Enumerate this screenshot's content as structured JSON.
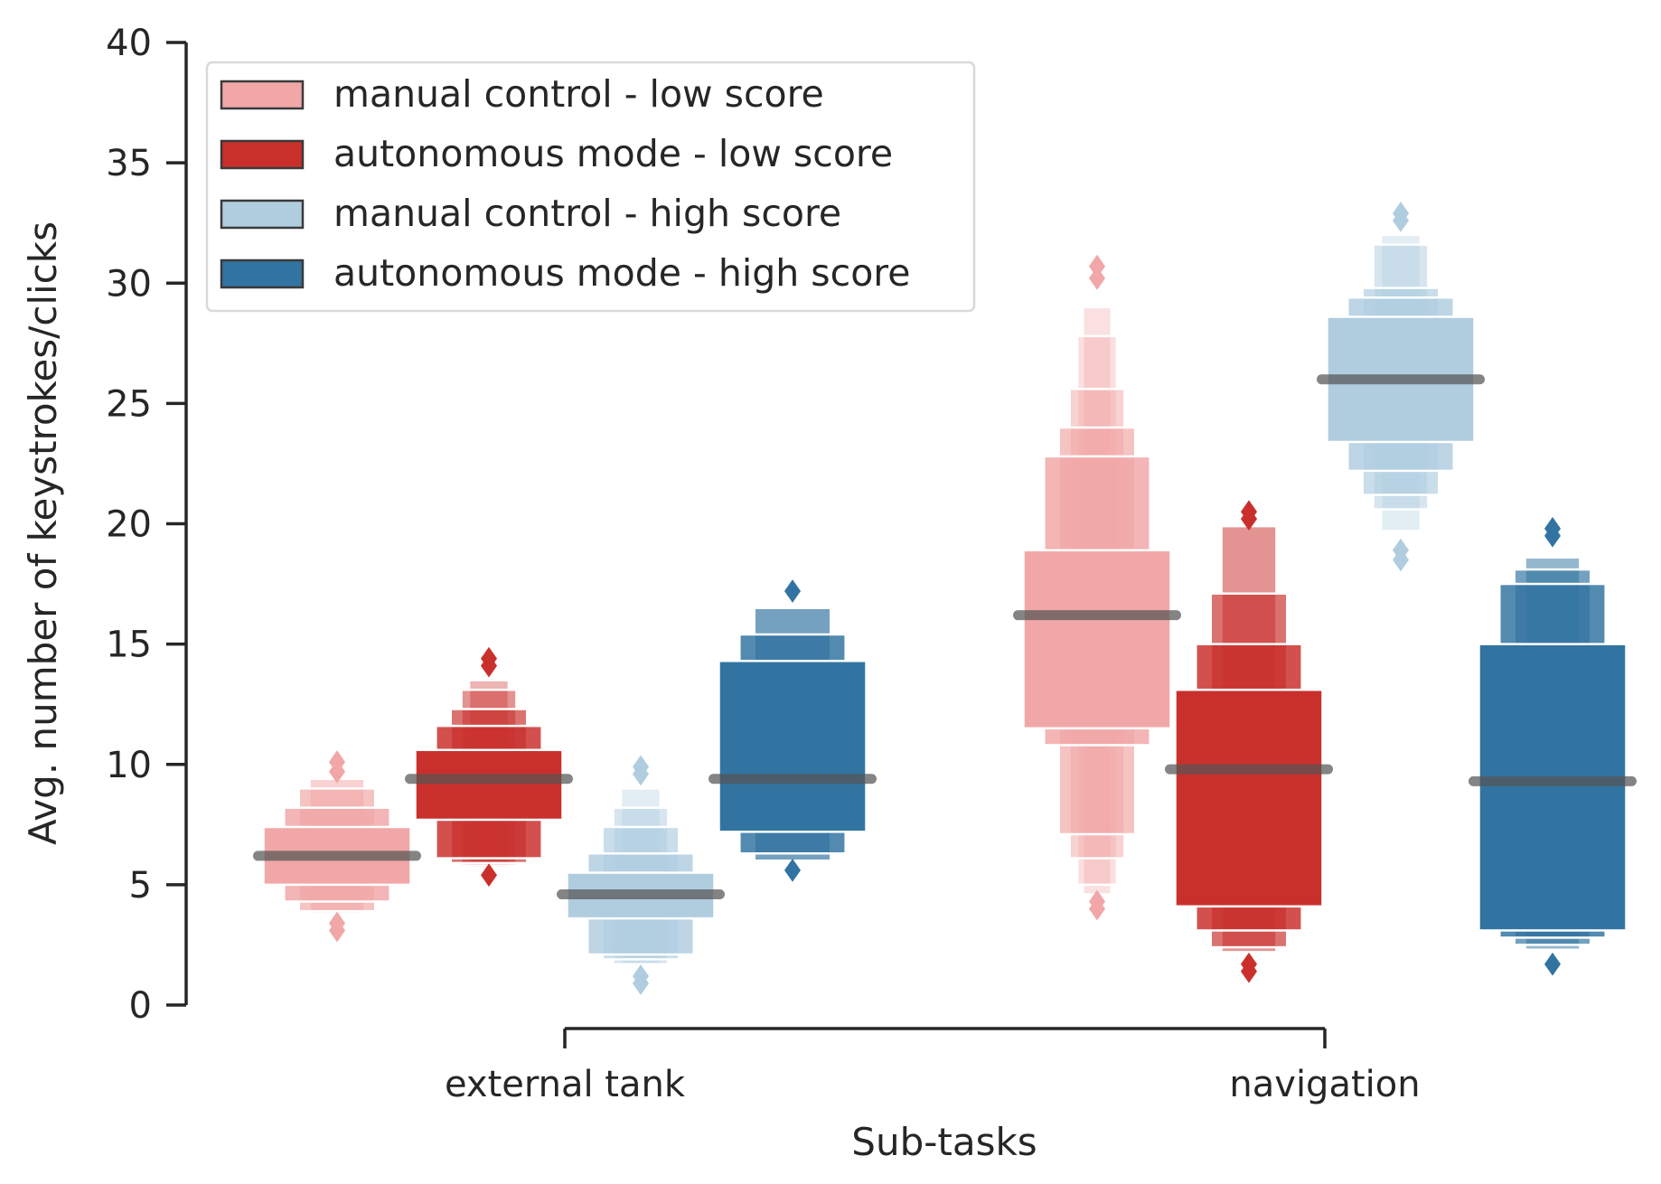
{
  "chart_data": {
    "type": "boxen",
    "xlabel": "Sub-tasks",
    "ylabel": "Avg. number of keystrokes/clicks",
    "ylim": [
      0,
      40
    ],
    "yticks": [
      0,
      5,
      10,
      15,
      20,
      25,
      30,
      35,
      40
    ],
    "categories": [
      "external tank",
      "navigation"
    ],
    "legend_position": "top-left",
    "series": [
      {
        "name": "manual control - low score",
        "color": "#f1a7a7",
        "groups": [
          {
            "category": "external tank",
            "median": 6.2,
            "boxes": [
              [
                5.0,
                7.4
              ],
              [
                4.3,
                8.2
              ],
              [
                3.9,
                9.0
              ],
              [
                3.8,
                9.4
              ]
            ],
            "outliers": [
              3.4,
              3.1,
              9.7,
              10.1
            ]
          },
          {
            "category": "navigation",
            "median": 16.2,
            "boxes": [
              [
                11.5,
                18.9
              ],
              [
                10.8,
                22.8
              ],
              [
                7.1,
                24.0
              ],
              [
                6.1,
                25.6
              ],
              [
                5.0,
                27.8
              ],
              [
                4.6,
                29.0
              ]
            ],
            "outliers": [
              4.0,
              4.3,
              30.2,
              30.7
            ]
          }
        ]
      },
      {
        "name": "autonomous mode - low score",
        "color": "#c9302c",
        "groups": [
          {
            "category": "external tank",
            "median": 9.4,
            "boxes": [
              [
                7.7,
                10.6
              ],
              [
                6.1,
                11.6
              ],
              [
                5.9,
                12.3
              ],
              [
                5.8,
                13.1
              ],
              [
                5.7,
                13.5
              ]
            ],
            "outliers": [
              5.4,
              14.1,
              14.4
            ]
          },
          {
            "category": "navigation",
            "median": 9.8,
            "boxes": [
              [
                4.1,
                13.1
              ],
              [
                3.1,
                15.0
              ],
              [
                2.4,
                17.1
              ],
              [
                2.2,
                19.9
              ]
            ],
            "outliers": [
              1.4,
              1.7,
              20.2,
              20.5
            ]
          }
        ]
      },
      {
        "name": "manual control - high score",
        "color": "#b0cde0",
        "groups": [
          {
            "category": "external tank",
            "median": 4.6,
            "boxes": [
              [
                3.6,
                5.5
              ],
              [
                2.1,
                6.3
              ],
              [
                1.9,
                7.4
              ],
              [
                1.7,
                8.2
              ],
              [
                1.6,
                9.0
              ]
            ],
            "outliers": [
              0.9,
              1.2,
              9.6,
              9.9
            ]
          },
          {
            "category": "navigation",
            "median": 26.0,
            "boxes": [
              [
                23.4,
                28.6
              ],
              [
                22.2,
                29.4
              ],
              [
                21.2,
                29.8
              ],
              [
                20.6,
                31.6
              ],
              [
                19.7,
                32.0
              ]
            ],
            "outliers": [
              18.5,
              18.9,
              32.6,
              32.9
            ]
          }
        ]
      },
      {
        "name": "autonomous mode - high score",
        "color": "#3274a1",
        "groups": [
          {
            "category": "external tank",
            "median": 9.4,
            "boxes": [
              [
                7.2,
                14.3
              ],
              [
                6.3,
                15.4
              ],
              [
                6.0,
                16.5
              ]
            ],
            "outliers": [
              5.6,
              17.2
            ]
          },
          {
            "category": "navigation",
            "median": 9.3,
            "boxes": [
              [
                3.1,
                15.0
              ],
              [
                2.8,
                17.5
              ],
              [
                2.5,
                18.1
              ],
              [
                2.3,
                18.6
              ]
            ],
            "outliers": [
              1.7,
              19.5,
              19.8
            ]
          }
        ]
      }
    ]
  }
}
